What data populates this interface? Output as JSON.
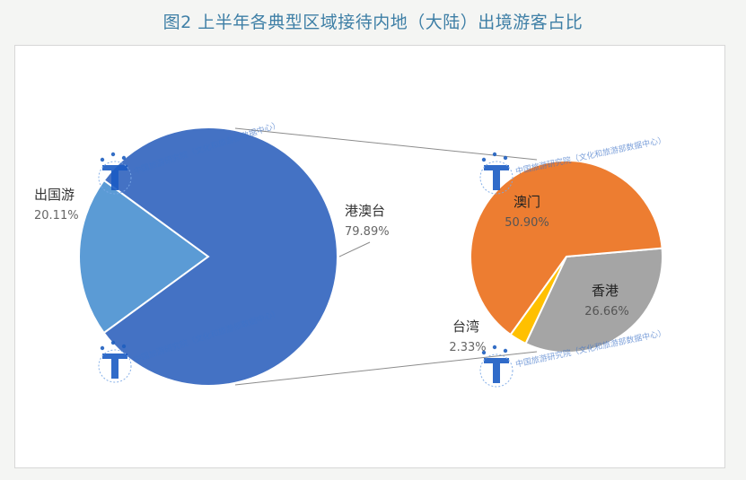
{
  "chart_data": {
    "type": "pie",
    "title": "图2 上半年各典型区域接待内地（大陆）出境游客占比",
    "main": {
      "slices": [
        {
          "label": "出国游",
          "value": 20.11,
          "value_text": "20.11%",
          "color": "#5b9bd5"
        },
        {
          "label": "港澳台",
          "value": 79.89,
          "value_text": "79.89%",
          "color": "#4472c4"
        }
      ]
    },
    "sub": {
      "slices": [
        {
          "label": "澳门",
          "value": 50.9,
          "value_text": "50.90%",
          "color": "#ed7d31"
        },
        {
          "label": "香港",
          "value": 26.66,
          "value_text": "26.66%",
          "color": "#a5a5a5"
        },
        {
          "label": "台湾",
          "value": 2.33,
          "value_text": "2.33%",
          "color": "#ffc000"
        }
      ]
    },
    "watermark_text": "中国旅游研究院（文化和旅游部数据中心）"
  }
}
